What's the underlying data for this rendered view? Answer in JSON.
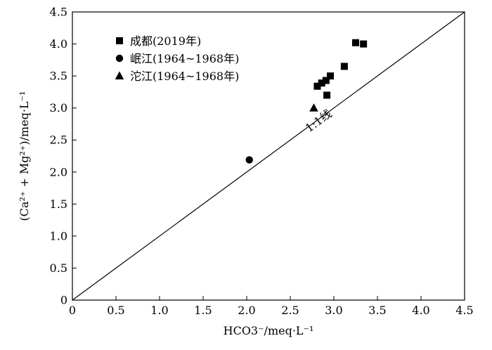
{
  "chart_data": {
    "type": "scatter",
    "title": "",
    "xlabel": "HCO3⁻/meq·L⁻¹",
    "ylabel": "(Ca²⁺ + Mg²⁺)/meq·L⁻¹",
    "xlim": [
      0,
      4.5
    ],
    "ylim": [
      0,
      4.5
    ],
    "x_ticks": [
      "0",
      "0.5",
      "1.0",
      "1.5",
      "2.0",
      "2.5",
      "3.0",
      "3.5",
      "4.0",
      "4.5"
    ],
    "y_ticks": [
      "0",
      "0.5",
      "1.0",
      "1.5",
      "2.0",
      "2.5",
      "3.0",
      "3.5",
      "4.0",
      "4.5"
    ],
    "grid": false,
    "legend_position": "top-left",
    "series": [
      {
        "name": "成都(2019年)",
        "marker": "square",
        "color": "#000000",
        "points": [
          {
            "x": 2.81,
            "y": 3.34
          },
          {
            "x": 2.86,
            "y": 3.39
          },
          {
            "x": 2.91,
            "y": 3.43
          },
          {
            "x": 2.96,
            "y": 3.5
          },
          {
            "x": 2.92,
            "y": 3.2
          },
          {
            "x": 3.12,
            "y": 3.65
          },
          {
            "x": 3.25,
            "y": 4.02
          },
          {
            "x": 3.34,
            "y": 4.0
          }
        ]
      },
      {
        "name": "岷江(1964~1968年)",
        "marker": "circle",
        "color": "#000000",
        "points": [
          {
            "x": 2.03,
            "y": 2.19
          }
        ]
      },
      {
        "name": "沱江(1964~1968年)",
        "marker": "triangle",
        "color": "#000000",
        "points": [
          {
            "x": 2.77,
            "y": 3.0
          }
        ]
      }
    ],
    "reference_line": {
      "from": [
        0,
        0
      ],
      "to": [
        4.5,
        4.5
      ],
      "label": "1:1线",
      "label_at": [
        2.85,
        2.75
      ]
    }
  }
}
